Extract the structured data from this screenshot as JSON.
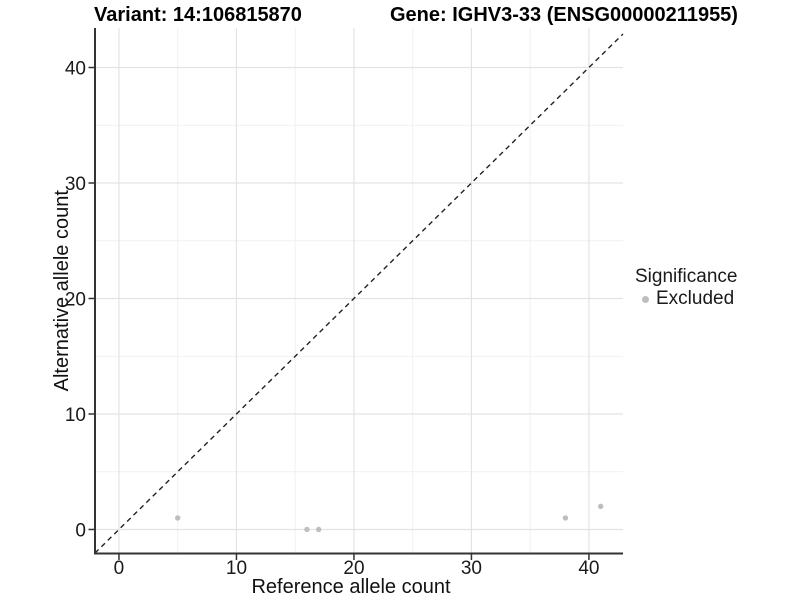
{
  "chart_data": {
    "type": "scatter",
    "title_left": "Variant: 14:106815870",
    "title_right": "Gene: IGHV3-33 (ENSG00000211955)",
    "xlabel": "Reference allele count",
    "ylabel": "Alternative allele count",
    "xlim": [
      -2.04,
      42.9
    ],
    "ylim": [
      -2.08,
      43.42
    ],
    "x_ticks": [
      0,
      10,
      20,
      30,
      40
    ],
    "y_ticks": [
      0,
      10,
      20,
      30,
      40
    ],
    "x_minor": [
      5,
      15,
      25,
      35
    ],
    "y_minor": [
      5,
      15,
      25,
      35
    ],
    "grid": true,
    "reference_line": {
      "type": "abline",
      "slope": 1,
      "intercept": 0,
      "style": "dashed",
      "color": "#222222"
    },
    "series": [
      {
        "name": "Excluded",
        "color": "#bebebe",
        "points": [
          [
            5,
            1
          ],
          [
            16,
            0
          ],
          [
            17,
            0
          ],
          [
            38,
            1
          ],
          [
            41,
            2
          ]
        ]
      }
    ],
    "legend": {
      "title": "Significance",
      "position": "right",
      "entries": [
        {
          "label": "Excluded",
          "color": "#bebebe"
        }
      ]
    },
    "colors": {
      "grid_major": "#e3e3e3",
      "grid_minor": "#f1f1f1",
      "axis_line": "#333333",
      "tick_text": "#1a1a1a",
      "axis_title_text": "#111111",
      "point": "#bebebe"
    }
  }
}
